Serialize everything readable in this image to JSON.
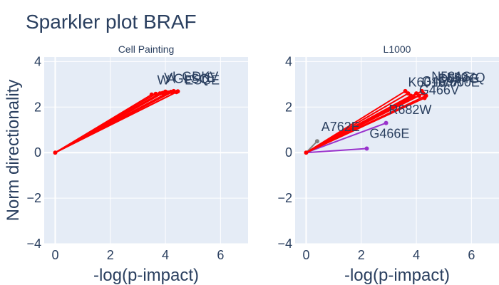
{
  "chart_data": {
    "type": "line",
    "title": "Sparkler plot BRAF",
    "ylabel": "Norm directionality",
    "xlabel": "-log(p-impact)",
    "colors": {
      "plot_bg": "#e5ecf6",
      "text": "#2a3f5f",
      "grid": "#ffffff",
      "red": "#ff0000",
      "purple": "#9932cc",
      "gray": "#808080"
    },
    "panels": [
      {
        "name": "Cell Painting",
        "xlim": [
          -0.4,
          7
        ],
        "ylim": [
          -4,
          4.2
        ],
        "x_ticks": [
          0,
          2,
          4,
          6
        ],
        "y_ticks": [
          -4,
          -2,
          0,
          2,
          4
        ],
        "origin": [
          0,
          0
        ],
        "series": [
          {
            "color": "red",
            "x": 3.5,
            "y": 2.55
          },
          {
            "color": "red",
            "x": 3.65,
            "y": 2.58
          },
          {
            "color": "red",
            "x": 3.8,
            "y": 2.6
          },
          {
            "color": "red",
            "x": 3.9,
            "y": 2.62
          },
          {
            "color": "red",
            "x": 4.0,
            "y": 2.68
          },
          {
            "color": "red",
            "x": 4.1,
            "y": 2.64
          },
          {
            "color": "red",
            "x": 4.2,
            "y": 2.67
          },
          {
            "color": "red",
            "x": 4.3,
            "y": 2.7
          },
          {
            "color": "red",
            "x": 4.4,
            "y": 2.66
          },
          {
            "color": "red",
            "x": 4.45,
            "y": 2.69
          }
        ],
        "annotations": [
          {
            "text": "W",
            "x": 3.7,
            "y": 3.0
          },
          {
            "text": "V",
            "x": 3.95,
            "y": 3.1
          },
          {
            "text": "A",
            "x": 4.05,
            "y": 3.05
          },
          {
            "text": "I",
            "x": 4.25,
            "y": 3.15
          },
          {
            "text": "GLSQ",
            "x": 4.3,
            "y": 3.05
          },
          {
            "text": "GDKV",
            "x": 4.6,
            "y": 3.15
          },
          {
            "text": "ESCE",
            "x": 4.7,
            "y": 3.0
          },
          {
            "text": "E",
            "x": 5.5,
            "y": 3.1
          }
        ]
      },
      {
        "name": "L1000",
        "xlim": [
          -0.4,
          7
        ],
        "ylim": [
          -4,
          4.2
        ],
        "x_ticks": [
          0,
          2,
          4,
          6
        ],
        "y_ticks": [
          -4,
          -2,
          0,
          2,
          4
        ],
        "origin": [
          0,
          0
        ],
        "series": [
          {
            "color": "gray",
            "x": 0.4,
            "y": 0.5
          },
          {
            "color": "purple",
            "x": 2.2,
            "y": 0.18
          },
          {
            "color": "purple",
            "x": 2.9,
            "y": 1.3
          },
          {
            "color": "red",
            "x": 3.6,
            "y": 2.7
          },
          {
            "color": "red",
            "x": 3.7,
            "y": 2.6
          },
          {
            "color": "red",
            "x": 3.8,
            "y": 2.5
          },
          {
            "color": "red",
            "x": 3.9,
            "y": 2.45
          },
          {
            "color": "red",
            "x": 4.0,
            "y": 2.6
          },
          {
            "color": "red",
            "x": 4.1,
            "y": 2.5
          },
          {
            "color": "red",
            "x": 4.2,
            "y": 2.7
          },
          {
            "color": "red",
            "x": 4.25,
            "y": 2.6
          },
          {
            "color": "red",
            "x": 4.3,
            "y": 2.4
          },
          {
            "color": "red",
            "x": 4.35,
            "y": 2.5
          }
        ],
        "annotations": [
          {
            "text": "A762E",
            "x": 0.55,
            "y": 0.95
          },
          {
            "text": "G466E",
            "x": 2.3,
            "y": 0.65
          },
          {
            "text": "R682W",
            "x": 3.0,
            "y": 1.7
          },
          {
            "text": "G466V",
            "x": 4.1,
            "y": 2.55
          },
          {
            "text": "K601E",
            "x": 3.7,
            "y": 2.9
          },
          {
            "text": "G469A",
            "x": 4.2,
            "y": 2.95
          },
          {
            "text": "D594G",
            "x": 4.8,
            "y": 3.05
          },
          {
            "text": "V600E",
            "x": 4.9,
            "y": 2.9
          },
          {
            "text": "N581S",
            "x": 4.55,
            "y": 3.15
          },
          {
            "text": "L597Q",
            "x": 5.1,
            "y": 3.1
          }
        ]
      }
    ]
  }
}
